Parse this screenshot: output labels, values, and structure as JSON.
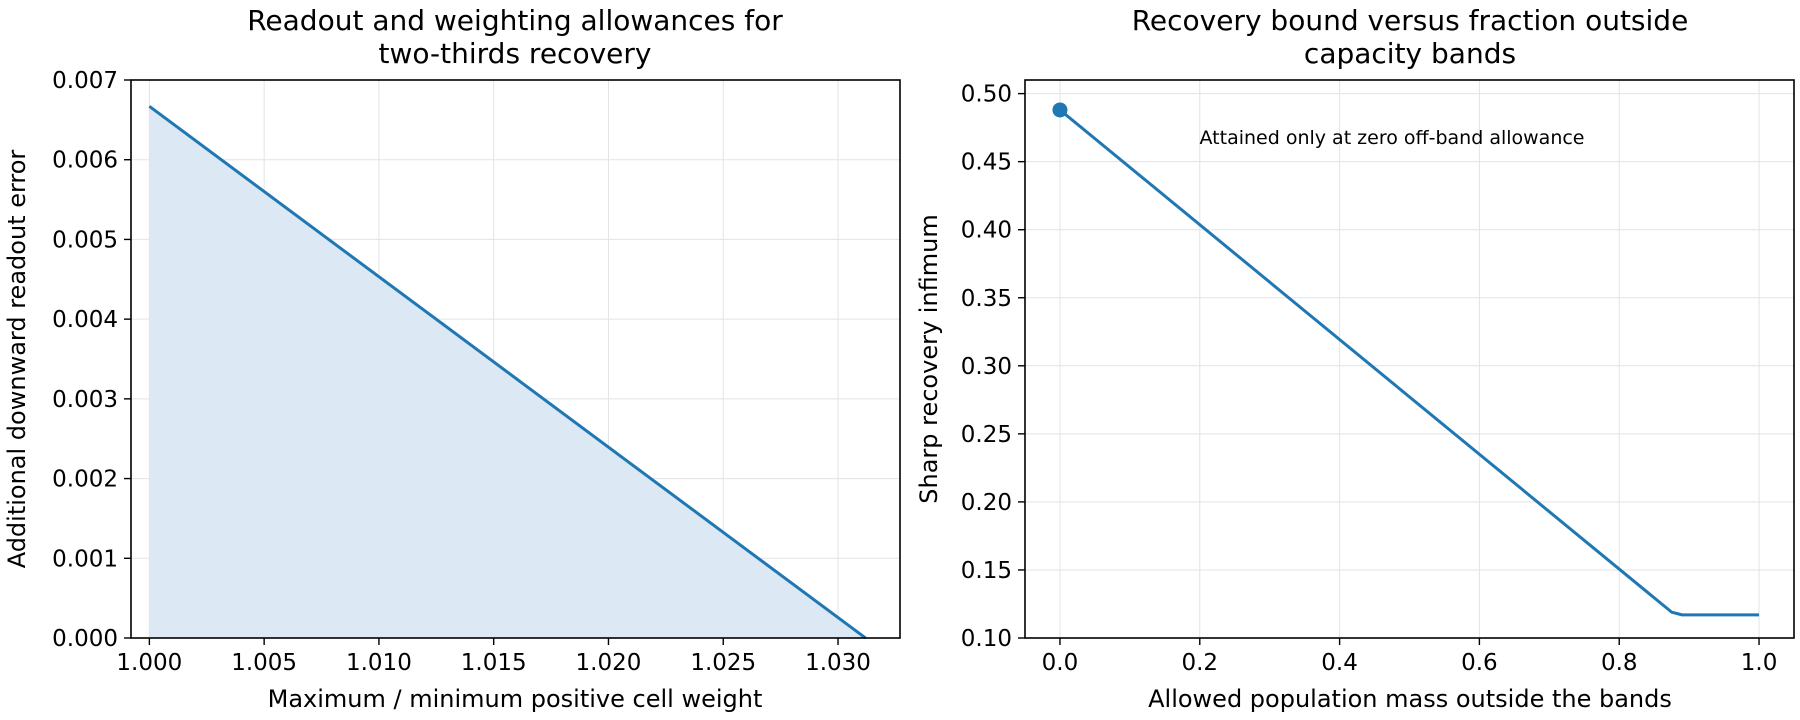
{
  "chart_data": [
    {
      "type": "area",
      "title_lines": [
        "Readout and weighting allowances for",
        "two-thirds recovery"
      ],
      "xlabel": "Maximum / minimum positive cell weight",
      "ylabel": "Additional downward readout error",
      "xlim": [
        0.9992,
        1.0327
      ],
      "ylim": [
        0,
        0.007
      ],
      "xticks": [
        1.0,
        1.005,
        1.01,
        1.015,
        1.02,
        1.025,
        1.03
      ],
      "xtick_labels": [
        "1.000",
        "1.005",
        "1.010",
        "1.015",
        "1.020",
        "1.025",
        "1.030"
      ],
      "yticks": [
        0,
        0.001,
        0.002,
        0.003,
        0.004,
        0.005,
        0.006,
        0.007
      ],
      "ytick_labels": [
        "0.000",
        "0.001",
        "0.002",
        "0.003",
        "0.004",
        "0.005",
        "0.006",
        "0.007"
      ],
      "grid": true,
      "series": [
        {
          "x": [
            1.0,
            1.0312
          ],
          "y": [
            0.00667,
            0.0
          ],
          "color": "#1f77b4",
          "fill_color": "#dce8f3"
        }
      ]
    },
    {
      "type": "line",
      "title_lines": [
        "Recovery bound versus fraction outside",
        "capacity bands"
      ],
      "xlabel": "Allowed population mass outside the bands",
      "ylabel": "Sharp recovery infimum",
      "xlim": [
        -0.05,
        1.05
      ],
      "ylim": [
        0.1,
        0.51
      ],
      "xticks": [
        0.0,
        0.2,
        0.4,
        0.6,
        0.8,
        1.0
      ],
      "xtick_labels": [
        "0.0",
        "0.2",
        "0.4",
        "0.6",
        "0.8",
        "1.0"
      ],
      "yticks": [
        0.1,
        0.15,
        0.2,
        0.25,
        0.3,
        0.35,
        0.4,
        0.45,
        0.5
      ],
      "ytick_labels": [
        "0.10",
        "0.15",
        "0.20",
        "0.25",
        "0.30",
        "0.35",
        "0.40",
        "0.45",
        "0.50"
      ],
      "grid": true,
      "series": [
        {
          "x": [
            0.0,
            0.875,
            0.89,
            1.0
          ],
          "y": [
            0.488,
            0.119,
            0.117,
            0.117
          ],
          "color": "#1f77b4"
        }
      ],
      "marker": {
        "x": 0.0,
        "y": 0.488,
        "color": "#1f77b4"
      },
      "annotation": {
        "text": "Attained only at zero off-band allowance",
        "x": 0.475,
        "y": 0.463
      }
    }
  ]
}
